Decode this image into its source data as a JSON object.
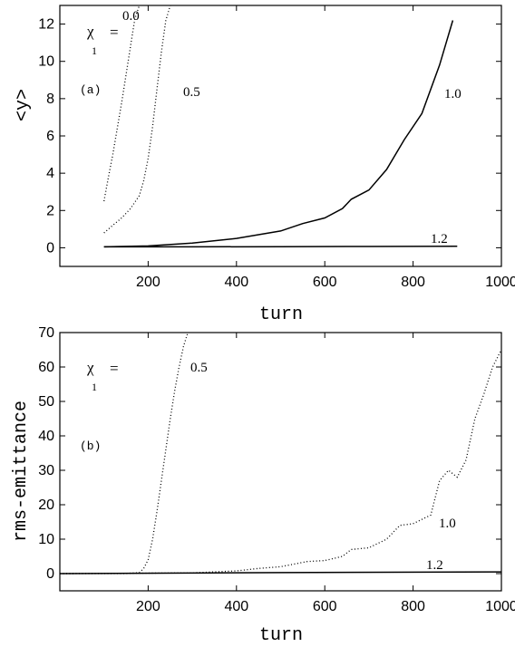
{
  "chart_data": [
    {
      "type": "line",
      "panel_label": "(a)",
      "xlabel": "turn",
      "ylabel": "<y>",
      "xlim": [
        0,
        1000
      ],
      "ylim": [
        -1,
        13
      ],
      "xticks": [
        "200",
        "400",
        "600",
        "800",
        "1000"
      ],
      "yticks": [
        "0",
        "2",
        "4",
        "6",
        "8",
        "10",
        "12"
      ],
      "legend_prefix": {
        "symbol": "χ",
        "subscript": "1",
        "equals": "="
      },
      "grid": false,
      "series": [
        {
          "name": "0.0",
          "style": "dotted",
          "x": [
            100,
            110,
            120,
            130,
            140,
            150,
            160,
            170,
            180
          ],
          "y": [
            2.5,
            3.8,
            5.0,
            6.4,
            7.8,
            9.3,
            10.8,
            12.3,
            13
          ]
        },
        {
          "name": "0.5",
          "style": "dotted",
          "x": [
            100,
            120,
            140,
            160,
            180,
            190,
            200,
            210,
            220,
            230,
            240,
            250
          ],
          "y": [
            0.8,
            1.2,
            1.6,
            2.1,
            2.8,
            3.6,
            4.8,
            6.5,
            8.5,
            10.5,
            12.2,
            13
          ]
        },
        {
          "name": "1.0",
          "style": "solid",
          "x": [
            100,
            200,
            300,
            400,
            450,
            500,
            550,
            600,
            640,
            660,
            700,
            740,
            780,
            820,
            860,
            890
          ],
          "y": [
            0.05,
            0.1,
            0.25,
            0.5,
            0.7,
            0.9,
            1.3,
            1.6,
            2.1,
            2.6,
            3.1,
            4.2,
            5.8,
            7.2,
            9.8,
            12.2
          ]
        },
        {
          "name": "1.2",
          "style": "solid",
          "x": [
            100,
            300,
            500,
            700,
            900
          ],
          "y": [
            0.05,
            0.05,
            0.06,
            0.07,
            0.08
          ]
        }
      ]
    },
    {
      "type": "line",
      "panel_label": "(b)",
      "xlabel": "turn",
      "ylabel": "rms-emittance",
      "xlim": [
        0,
        1000
      ],
      "ylim": [
        -5,
        70
      ],
      "xticks": [
        "200",
        "400",
        "600",
        "800",
        "1000"
      ],
      "yticks": [
        "0",
        "10",
        "20",
        "30",
        "40",
        "50",
        "60",
        "70"
      ],
      "legend_prefix": {
        "symbol": "χ",
        "subscript": "1",
        "equals": "="
      },
      "grid": false,
      "series": [
        {
          "name": "0.5",
          "style": "dotted",
          "x": [
            0,
            150,
            180,
            190,
            200,
            210,
            220,
            230,
            240,
            250,
            260,
            270,
            280,
            290
          ],
          "y": [
            0,
            0,
            0.3,
            1.5,
            4,
            10,
            18,
            27,
            36,
            45,
            53,
            60,
            66,
            70
          ]
        },
        {
          "name": "1.0",
          "style": "dotted",
          "x": [
            0,
            300,
            400,
            450,
            500,
            560,
            600,
            640,
            660,
            700,
            740,
            770,
            800,
            840,
            860,
            880,
            900,
            920,
            940,
            960,
            980,
            1000
          ],
          "y": [
            0,
            0.2,
            0.8,
            1.5,
            2,
            3.5,
            3.8,
            5,
            7,
            7.5,
            10,
            14,
            14.5,
            17,
            27,
            30,
            28,
            33,
            45,
            52,
            60,
            65
          ]
        },
        {
          "name": "1.2",
          "style": "solid",
          "x": [
            0,
            500,
            1000
          ],
          "y": [
            0,
            0.3,
            0.5
          ]
        }
      ]
    }
  ]
}
